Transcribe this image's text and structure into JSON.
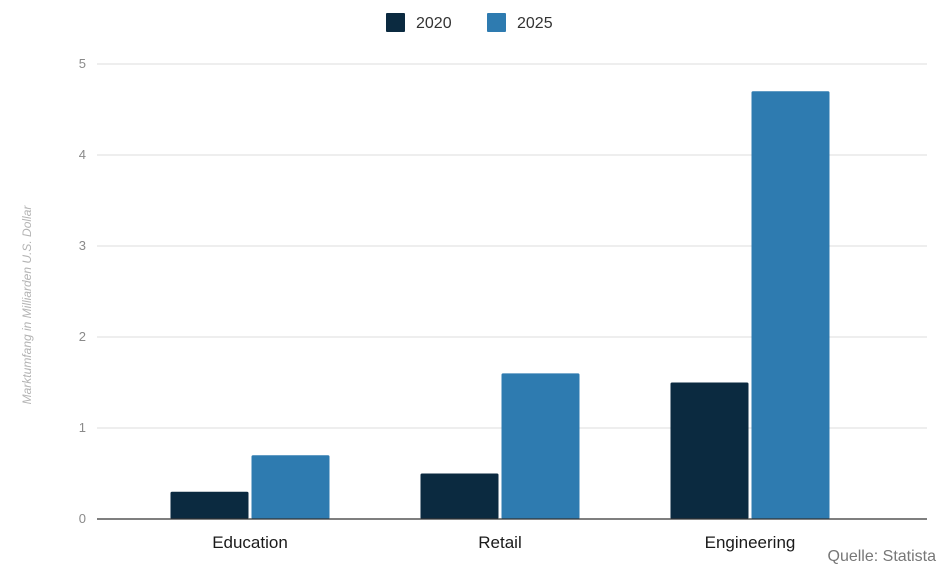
{
  "chart_data": {
    "type": "bar",
    "categories": [
      "Education",
      "Retail",
      "Engineering"
    ],
    "series": [
      {
        "name": "2020",
        "values": [
          0.3,
          0.5,
          1.5
        ],
        "color": "#0b2a40"
      },
      {
        "name": "2025",
        "values": [
          0.7,
          1.6,
          4.7
        ],
        "color": "#2e7bb0"
      }
    ],
    "xlabel": "",
    "ylabel": "Marktumfang in Milliarden U.S. Dollar",
    "ylim": [
      0,
      5
    ],
    "yticks": [
      "0",
      "1",
      "2",
      "3",
      "4",
      "5"
    ],
    "grid": true,
    "legend_position": "top-center",
    "source": "Quelle: Statista"
  }
}
